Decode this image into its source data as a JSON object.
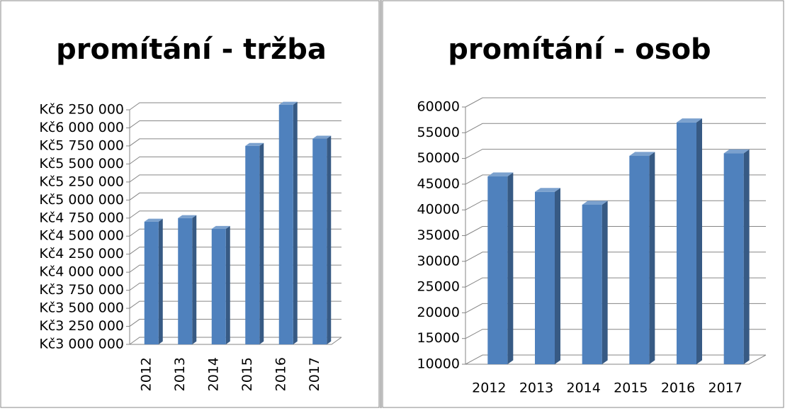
{
  "chart_data": [
    {
      "type": "bar",
      "title": "promítání - tržba",
      "categories": [
        "2012",
        "2013",
        "2014",
        "2015",
        "2016",
        "2017"
      ],
      "values": [
        4700000,
        4750000,
        4600000,
        5750000,
        6320000,
        5850000
      ],
      "color": "#4f81bd",
      "ylim": [
        3000000,
        6250000
      ],
      "yticks": [
        {
          "value": 3000000,
          "label": "Kč3 000 000"
        },
        {
          "value": 3250000,
          "label": "Kč3 250 000"
        },
        {
          "value": 3500000,
          "label": "Kč3 500 000"
        },
        {
          "value": 3750000,
          "label": "Kč3 750 000"
        },
        {
          "value": 4000000,
          "label": "Kč4 000 000"
        },
        {
          "value": 4250000,
          "label": "Kč4 250 000"
        },
        {
          "value": 4500000,
          "label": "Kč4 500 000"
        },
        {
          "value": 4750000,
          "label": "Kč4 750 000"
        },
        {
          "value": 5000000,
          "label": "Kč5 000 000"
        },
        {
          "value": 5250000,
          "label": "Kč5 250 000"
        },
        {
          "value": 5500000,
          "label": "Kč5 500 000"
        },
        {
          "value": 5750000,
          "label": "Kč5 750 000"
        },
        {
          "value": 6000000,
          "label": "Kč6 000 000"
        },
        {
          "value": 6250000,
          "label": "Kč6 250 000"
        }
      ],
      "grid": true
    },
    {
      "type": "bar",
      "title": "promítání - osob",
      "categories": [
        "2012",
        "2013",
        "2014",
        "2015",
        "2016",
        "2017"
      ],
      "values": [
        46500,
        43500,
        41000,
        50500,
        57000,
        51000
      ],
      "color": "#4f81bd",
      "ylim": [
        10000,
        60000
      ],
      "yticks": [
        10000,
        15000,
        20000,
        25000,
        30000,
        35000,
        40000,
        45000,
        50000,
        55000,
        60000
      ],
      "grid": true
    }
  ]
}
